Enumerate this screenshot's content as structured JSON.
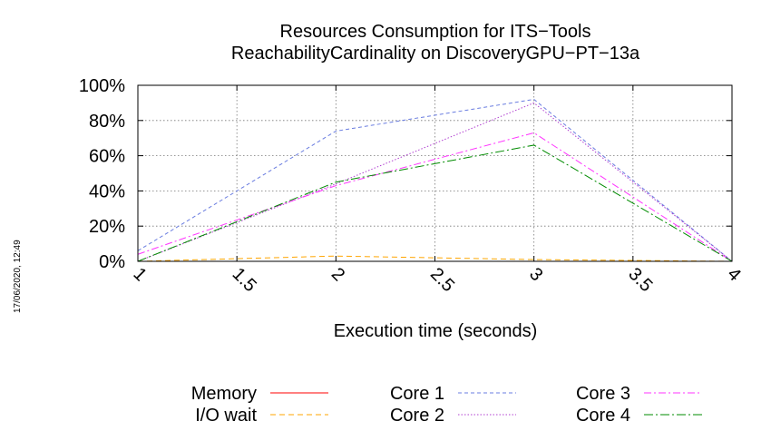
{
  "chart_data": {
    "type": "line",
    "title": [
      "Resources Consumption for ITS−Tools",
      "ReachabilityCardinality on DiscoveryGPU−PT−13a"
    ],
    "xlabel": "Execution time (seconds)",
    "ylabel": "",
    "timestamp": "17/06/2020, 12:49",
    "xlim": [
      1,
      4
    ],
    "ylim": [
      0,
      100
    ],
    "x_ticks": [
      "1",
      "1.5",
      "2",
      "2.5",
      "3",
      "3.5",
      "4"
    ],
    "y_ticks": [
      "0%",
      "20%",
      "40%",
      "60%",
      "80%",
      "100%"
    ],
    "grid": true,
    "legend_position": "bottom",
    "series": [
      {
        "name": "Memory",
        "color": "#ff0000",
        "dash": "solid",
        "x": [
          1,
          2,
          3,
          4
        ],
        "y": [
          0,
          0,
          0,
          0
        ]
      },
      {
        "name": "I/O wait",
        "color": "#ffa500",
        "dash": "dashed",
        "x": [
          1,
          2,
          3,
          4
        ],
        "y": [
          0,
          3,
          1,
          0
        ]
      },
      {
        "name": "Core 1",
        "color": "#6a7de0",
        "dash": "dashed-fine",
        "x": [
          1,
          2,
          3,
          4
        ],
        "y": [
          6,
          74,
          92,
          0
        ]
      },
      {
        "name": "Core 2",
        "color": "#b040d0",
        "dash": "dotted",
        "x": [
          1,
          2,
          3,
          4
        ],
        "y": [
          0,
          44,
          90,
          0
        ]
      },
      {
        "name": "Core 3",
        "color": "#ff33ff",
        "dash": "dashdot",
        "x": [
          1,
          2,
          3,
          4
        ],
        "y": [
          4,
          43,
          73,
          0
        ]
      },
      {
        "name": "Core 4",
        "color": "#008b00",
        "dash": "dashdot-long",
        "x": [
          1,
          2,
          3,
          4
        ],
        "y": [
          0,
          45,
          66,
          0
        ]
      }
    ]
  }
}
